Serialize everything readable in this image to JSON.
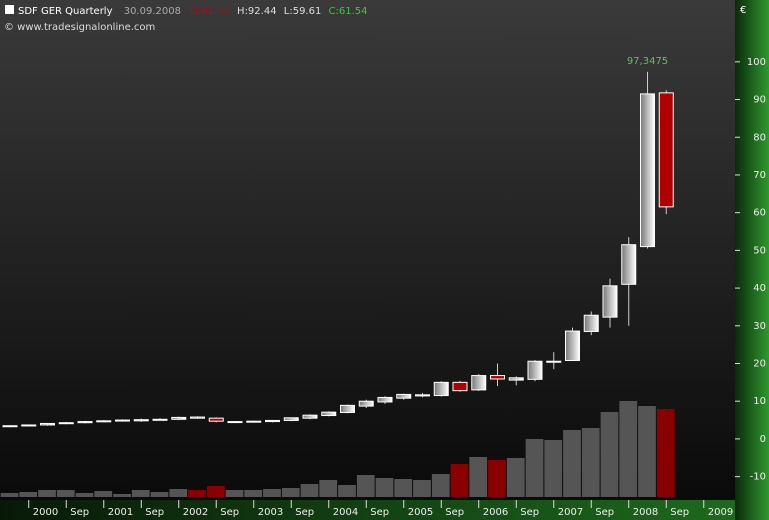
{
  "chart_data": {
    "type": "candlestick",
    "title": "SDF GER Quarterly",
    "date": "30.09.2008",
    "ohlc_labels": [
      "O:91.77",
      "H:92.44",
      "L:59.61",
      "C:61.54"
    ],
    "copyright": "© www.tradesignalonline.com",
    "currency": "€",
    "annotation": {
      "text": "97,3475",
      "index": 34
    },
    "categories": [
      null,
      "2000",
      null,
      "Sep",
      null,
      "2001",
      null,
      "Sep",
      null,
      "2002",
      null,
      "Sep",
      null,
      "2003",
      null,
      "Sep",
      null,
      "2004",
      null,
      "Sep",
      null,
      "2005",
      null,
      "Sep",
      null,
      "2006",
      null,
      "Sep",
      null,
      "2007",
      null,
      "Sep",
      null,
      "2008",
      null,
      "Sep",
      null,
      "2009"
    ],
    "open": [
      3.3,
      3.5,
      3.7,
      4.1,
      4.3,
      4.6,
      4.8,
      4.8,
      5.1,
      5.2,
      5.8,
      5.5,
      4.4,
      4.5,
      4.6,
      4.9,
      5.5,
      6.2,
      7.0,
      8.7,
      9.8,
      10.8,
      11.4,
      11.5,
      15.0,
      13.0,
      16.8,
      15.6,
      15.8,
      20.5,
      20.8,
      28.5,
      32.3,
      41.0,
      51.0,
      91.77,
      null,
      null
    ],
    "high": [
      3.6,
      3.8,
      4.2,
      4.5,
      4.8,
      5.0,
      5.2,
      5.4,
      5.5,
      5.9,
      6.0,
      5.7,
      4.7,
      4.8,
      5.0,
      5.7,
      6.5,
      7.3,
      9.1,
      10.4,
      11.3,
      12.0,
      12.2,
      15.3,
      15.4,
      17.2,
      20.0,
      16.6,
      20.9,
      23.0,
      29.5,
      33.8,
      42.5,
      53.5,
      97.3475,
      92.44,
      null,
      null
    ],
    "low": [
      3.1,
      3.3,
      3.5,
      3.9,
      4.1,
      4.4,
      4.6,
      4.5,
      4.9,
      5.0,
      5.3,
      4.4,
      4.2,
      4.3,
      4.4,
      4.7,
      5.2,
      6.0,
      6.8,
      8.2,
      9.3,
      10.4,
      11.0,
      11.2,
      12.5,
      12.7,
      14.0,
      14.2,
      15.3,
      18.5,
      22.0,
      27.5,
      29.5,
      30.0,
      50.5,
      59.61,
      null,
      null
    ],
    "close": [
      3.5,
      3.7,
      4.1,
      4.3,
      4.6,
      4.8,
      5.0,
      5.1,
      5.2,
      5.7,
      5.5,
      4.7,
      4.6,
      4.7,
      4.9,
      5.6,
      6.3,
      7.1,
      8.9,
      10.0,
      11.0,
      11.8,
      11.7,
      15.0,
      12.8,
      16.8,
      15.9,
      16.2,
      20.6,
      20.6,
      28.6,
      32.8,
      40.6,
      51.5,
      91.5,
      61.54,
      null,
      null
    ],
    "volume": [
      4,
      5,
      7,
      7,
      4,
      6,
      3,
      7,
      5,
      8,
      7,
      11,
      7,
      7,
      8,
      9,
      13,
      17,
      12,
      22,
      19,
      18,
      17,
      23,
      33,
      40,
      37,
      39,
      58,
      57,
      67,
      69,
      85,
      96,
      91,
      88,
      null,
      null
    ],
    "up_color": "#ffffff",
    "down_color": "#b00000",
    "volume_color": "#555555",
    "volume_down_color": "#8a0000",
    "annotation_color": "#4fc84f",
    "ylim": [
      -16.2,
      116.4
    ],
    "yticks": [
      -10,
      0,
      10,
      20,
      30,
      40,
      50,
      60,
      70,
      80,
      90,
      100
    ]
  }
}
